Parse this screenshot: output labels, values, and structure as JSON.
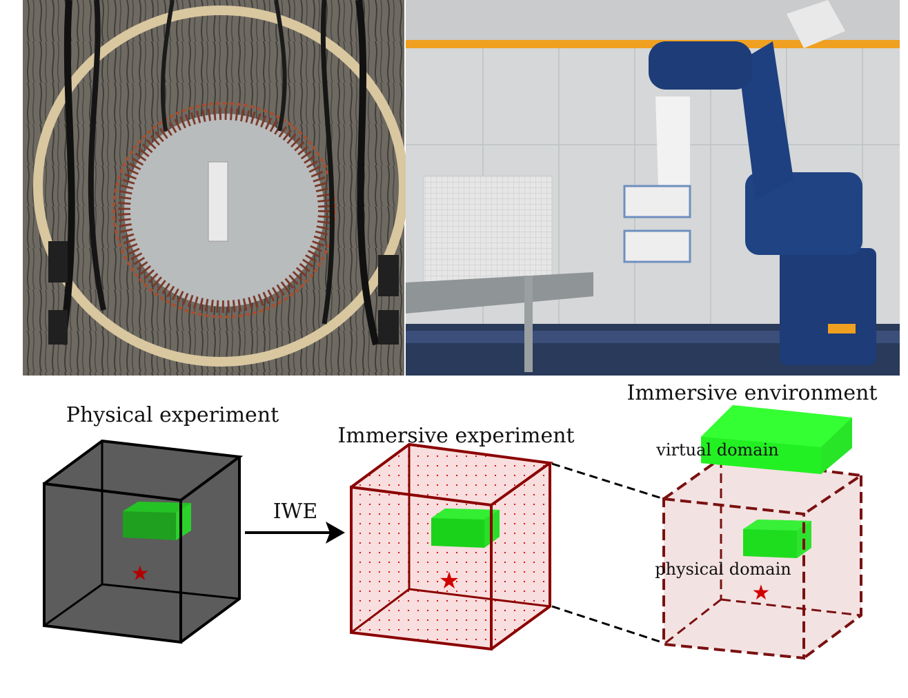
{
  "photos": {
    "left": {
      "description_icon": "wired-specimen-photo-icon"
    },
    "right": {
      "description_icon": "robot-arm-photo-icon"
    }
  },
  "labels": {
    "physical_experiment": "Physical experiment",
    "immersive_experiment": "Immersive experiment",
    "immersive_environment": "Immersive environment",
    "arrow": "IWE",
    "virtual_domain": "virtual domain",
    "physical_domain": "physical domain"
  },
  "colors": {
    "physical_cube_fill": "#5a5a5a",
    "immersive_cube_edge": "#8b0000",
    "immersive_cube_fill": "#f6d6d6",
    "environment_cube_fill": "#f2e1e1",
    "domain_green": "#22ee22",
    "star": "#cc0000"
  }
}
